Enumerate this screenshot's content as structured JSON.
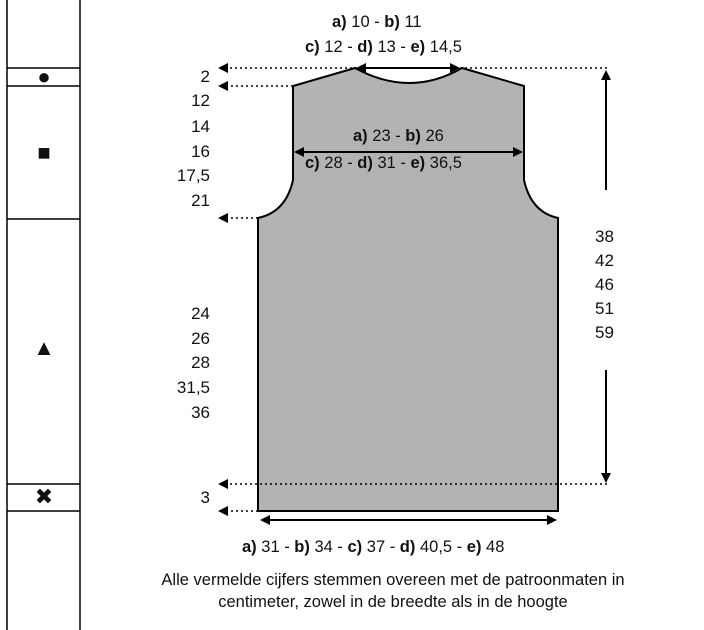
{
  "size_labels": {
    "neck": [
      {
        "letter": "a)",
        "value": "10"
      },
      {
        "letter": "b)",
        "value": "11"
      },
      {
        "letter": "c)",
        "value": "12"
      },
      {
        "letter": "d)",
        "value": "13"
      },
      {
        "letter": "e)",
        "value": "14,5"
      }
    ],
    "shoulder": [
      {
        "letter": "a)",
        "value": "23"
      },
      {
        "letter": "b)",
        "value": "26"
      },
      {
        "letter": "c)",
        "value": "28"
      },
      {
        "letter": "d)",
        "value": "31"
      },
      {
        "letter": "e)",
        "value": "36,5"
      }
    ],
    "bottom": [
      {
        "letter": "a)",
        "value": "31"
      },
      {
        "letter": "b)",
        "value": "34"
      },
      {
        "letter": "c)",
        "value": "37"
      },
      {
        "letter": "d)",
        "value": "40,5"
      },
      {
        "letter": "e)",
        "value": "48"
      }
    ]
  },
  "left_values": {
    "neck_drop": "2",
    "armhole": [
      "12",
      "14",
      "16",
      "17,5",
      "21"
    ],
    "body": [
      "24",
      "26",
      "28",
      "31,5",
      "36"
    ],
    "ribbing": "3"
  },
  "right_values": {
    "total_length": [
      "38",
      "42",
      "46",
      "51",
      "59"
    ]
  },
  "markers": {
    "circle": "●",
    "square": "■",
    "triangle": "▲",
    "cross": "✖"
  },
  "note": {
    "line1": "Alle vermelde cijfers stemmen overeen met de patroonmaten in",
    "line2": "centimeter, zowel in de breedte als in de hoogte"
  },
  "colors": {
    "garment_fill": "#b3b3b3",
    "line": "#000000"
  }
}
